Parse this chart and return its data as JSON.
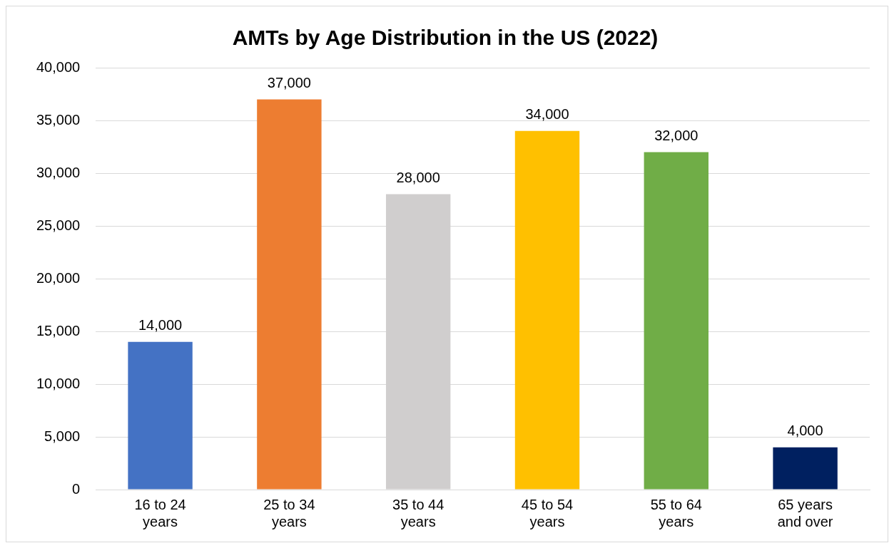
{
  "chart_data": {
    "type": "bar",
    "title": "AMTs by Age Distribution in the US (2022)",
    "categories": [
      "16 to 24 years",
      "25 to 34 years",
      "35 to 44 years",
      "45 to 54 years",
      "55 to 64 years",
      "65 years and over"
    ],
    "values": [
      14000,
      37000,
      28000,
      34000,
      32000,
      4000
    ],
    "colors": [
      "#4472c4",
      "#ed7d31",
      "#d0cece",
      "#ffc000",
      "#70ad47",
      "#002060"
    ],
    "value_labels": [
      "14,000",
      "37,000",
      "28,000",
      "34,000",
      "32,000",
      "4,000"
    ],
    "ylim": [
      0,
      40000
    ],
    "yticks": [
      0,
      {
        "value": 5000,
        "label": "5,000"
      },
      {
        "value": 10000,
        "label": "10,000"
      },
      {
        "value": 15000,
        "label": "15,000"
      },
      {
        "value": 20000,
        "label": "20,000"
      },
      {
        "value": 25000,
        "label": "25,000"
      },
      {
        "value": 30000,
        "label": "30,000"
      },
      {
        "value": 35000,
        "label": "35,000"
      },
      {
        "value": 40000,
        "label": "40,000"
      }
    ],
    "grid": "y",
    "legend": false
  }
}
